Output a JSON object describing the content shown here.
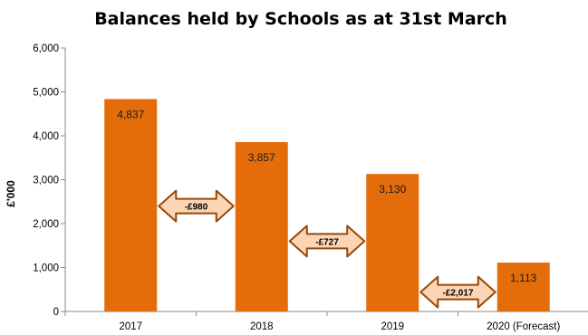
{
  "chart_data": {
    "type": "bar",
    "title": "Balances held by Schools as at 31st March",
    "ylabel": "£'000",
    "xlabel": "",
    "categories": [
      "2017",
      "2018",
      "2019",
      "2020 (Forecast)"
    ],
    "values": [
      4837,
      3857,
      3130,
      1113
    ],
    "data_labels": [
      "4,837",
      "3,857",
      "3,130",
      "1,113"
    ],
    "ylim": [
      0,
      6000
    ],
    "yticks": [
      0,
      1000,
      2000,
      3000,
      4000,
      5000,
      6000
    ],
    "ytick_labels": [
      "0",
      "1,000",
      "2,000",
      "3,000",
      "4,000",
      "5,000",
      "6,000"
    ],
    "grid": false,
    "legend": "none",
    "bar_color": "#E46C0A",
    "annotations": [
      {
        "text": "-£980",
        "between": [
          "2017",
          "2018"
        ],
        "y": 2400
      },
      {
        "text": "-£727",
        "between": [
          "2018",
          "2019"
        ],
        "y": 1600
      },
      {
        "text": "-£2,017",
        "between": [
          "2019",
          "2020 (Forecast)"
        ],
        "y": 440
      }
    ],
    "annotation_fill": "#FCD5B5",
    "annotation_stroke": "#984807"
  }
}
